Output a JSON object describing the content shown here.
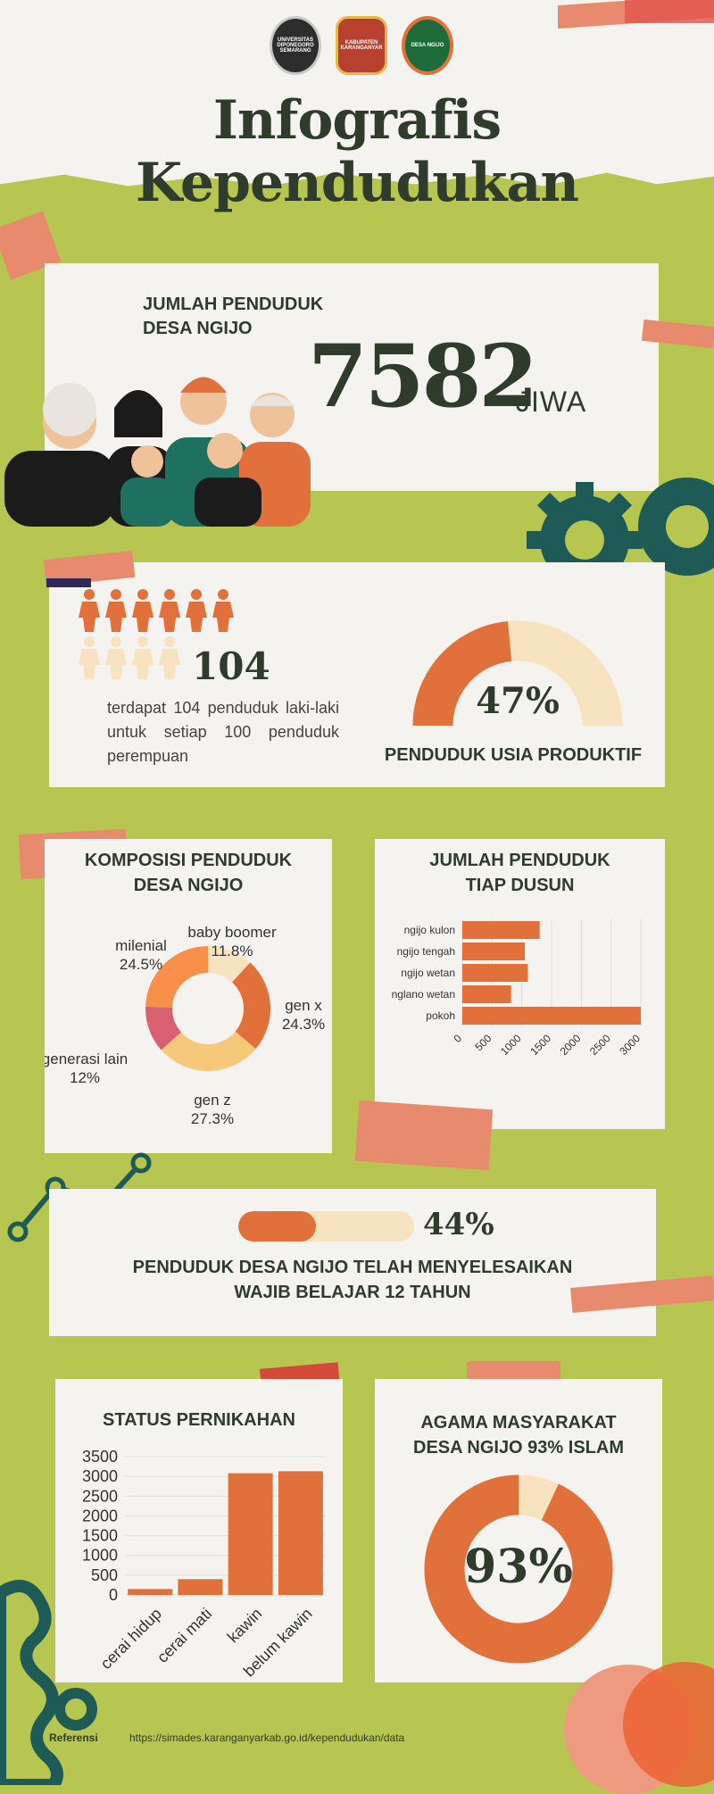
{
  "header": {
    "logos": [
      "UNIVERSITAS DIPONEGORO SEMARANG",
      "KABUPATEN KARANGANYAR",
      "DESA NGIJO"
    ],
    "title": "Infografis Kependudukan"
  },
  "population": {
    "label_line1": "JUMLAH PENDUDUK",
    "label_line2": "DESA NGIJO",
    "value": "7582",
    "unit": "JIWA"
  },
  "sex_ratio": {
    "value": "104",
    "text": "terdapat 104 penduduk laki-laki untuk setiap 100 penduduk perempuan"
  },
  "productive": {
    "percent_label": "47%",
    "fraction": 0.47,
    "caption": "PENDUDUK USIA PRODUKTIF"
  },
  "composition": {
    "title_line1": "KOMPOSISI PENDUDUK",
    "title_line2": "DESA NGIJO"
  },
  "dusun": {
    "title_line1": "JUMLAH PENDUDUK",
    "title_line2": "TIAP DUSUN"
  },
  "education": {
    "percent_label": "44%",
    "fraction": 0.44,
    "caption_line1": "PENDUDUK DESA NGIJO TELAH MENYELESAIKAN",
    "caption_line2": "WAJIB BELAJAR 12 TAHUN"
  },
  "marital": {
    "title": "STATUS PERNIKAHAN"
  },
  "religion": {
    "title_line1": "AGAMA MASYARAKAT",
    "title_line2": "DESA NGIJO 93% ISLAM",
    "percent_label": "93%",
    "fraction": 0.93
  },
  "footer": {
    "ref_label": "Referensi",
    "ref_url": "https://simades.karanganyarkab.go.id/kependudukan/data"
  },
  "colors": {
    "accent": "#e2703a",
    "light": "#f7e3c0",
    "green": "#b7c551",
    "teal": "#1e5b57",
    "dark": "#2f3b2b"
  },
  "chart_data": [
    {
      "type": "pie",
      "categories": [
        "baby boomer",
        "gen x",
        "gen z",
        "generasi lain",
        "milenial"
      ],
      "values": [
        11.8,
        24.3,
        27.3,
        12,
        24.5
      ],
      "labels": [
        "11.8%",
        "24.3%",
        "27.3%",
        "12%",
        "24.5%"
      ],
      "colors": [
        "#f7e3c0",
        "#e2703a",
        "#f6c87a",
        "#d96070",
        "#f9904a"
      ]
    },
    {
      "type": "bar",
      "orientation": "horizontal",
      "categories": [
        "ngijo kulon",
        "ngijo tengah",
        "ngijo wetan",
        "nglano wetan",
        "pokoh"
      ],
      "values": [
        1300,
        1050,
        1100,
        820,
        3000
      ],
      "xlim": [
        0,
        3000
      ],
      "xticks": [
        0,
        500,
        1000,
        1500,
        2000,
        2500,
        3000
      ]
    },
    {
      "type": "bar",
      "categories": [
        "cerai hidup",
        "cerai mati",
        "kawin",
        "belum kawin"
      ],
      "values": [
        150,
        400,
        3080,
        3130
      ],
      "ylim": [
        0,
        3500
      ],
      "yticks": [
        0,
        500,
        1000,
        1500,
        2000,
        2500,
        3000,
        3500
      ]
    }
  ]
}
